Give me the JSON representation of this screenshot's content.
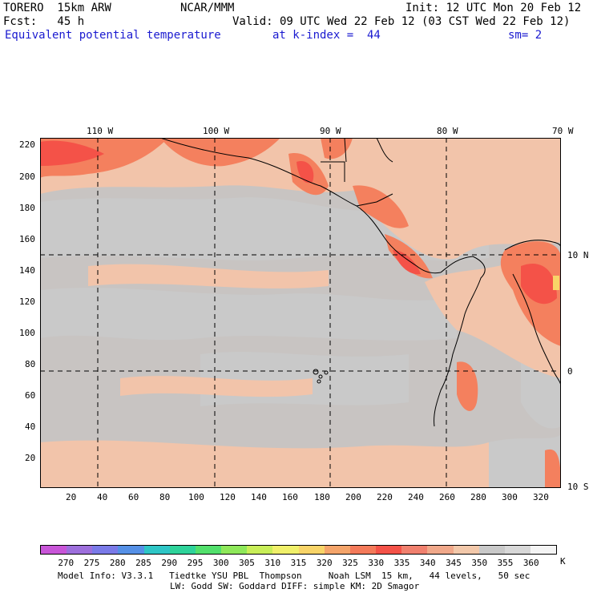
{
  "header": {
    "model": "TORERO  15km ARW",
    "org": "NCAR/MMM",
    "init": "Init: 12 UTC Mon 20 Feb 12",
    "fcst": "Fcst:   45 h",
    "valid": "Valid: 09 UTC Wed 22 Feb 12 (03 CST Wed 22 Feb 12)",
    "field": "Equivalent potential temperature",
    "level": "at k-index =  44",
    "smooth": "sm= 2"
  },
  "map": {
    "lon_labels": [
      "110 W",
      "100 W",
      "90 W",
      "80 W",
      "70 W"
    ],
    "lat_labels": [
      "10 N",
      "0",
      "10 S"
    ],
    "y_ticks": [
      "220",
      "200",
      "180",
      "160",
      "140",
      "120",
      "100",
      "80",
      "60",
      "40",
      "20"
    ],
    "x_ticks": [
      "20",
      "40",
      "60",
      "80",
      "100",
      "120",
      "140",
      "160",
      "180",
      "200",
      "220",
      "240",
      "260",
      "280",
      "300",
      "320"
    ]
  },
  "colorbar": {
    "unit": "K",
    "labels": [
      "270",
      "275",
      "280",
      "285",
      "290",
      "295",
      "300",
      "305",
      "310",
      "315",
      "320",
      "325",
      "330",
      "335",
      "340",
      "345",
      "350",
      "355",
      "360"
    ],
    "colors": [
      "#c855d8",
      "#9d6fdc",
      "#7a7ae8",
      "#5590e6",
      "#2ec6c6",
      "#2ed39a",
      "#52e06c",
      "#8ee85a",
      "#c8ee58",
      "#f0f06a",
      "#f8d468",
      "#f4a46a",
      "#f47a5a",
      "#f45248",
      "#f0806e",
      "#f0a88a",
      "#f2c8aa",
      "#c9c9c9",
      "#d8d8d8",
      "#f4f4f4"
    ]
  },
  "footer": {
    "line1": "Model Info: V3.3.1   Tiedtke YSU PBL  Thompson     Noah LSM  15 km,   44 levels,   50 sec",
    "line2": "LW: Godd SW: Goddard DIFF: simple KM: 2D Smagor"
  }
}
